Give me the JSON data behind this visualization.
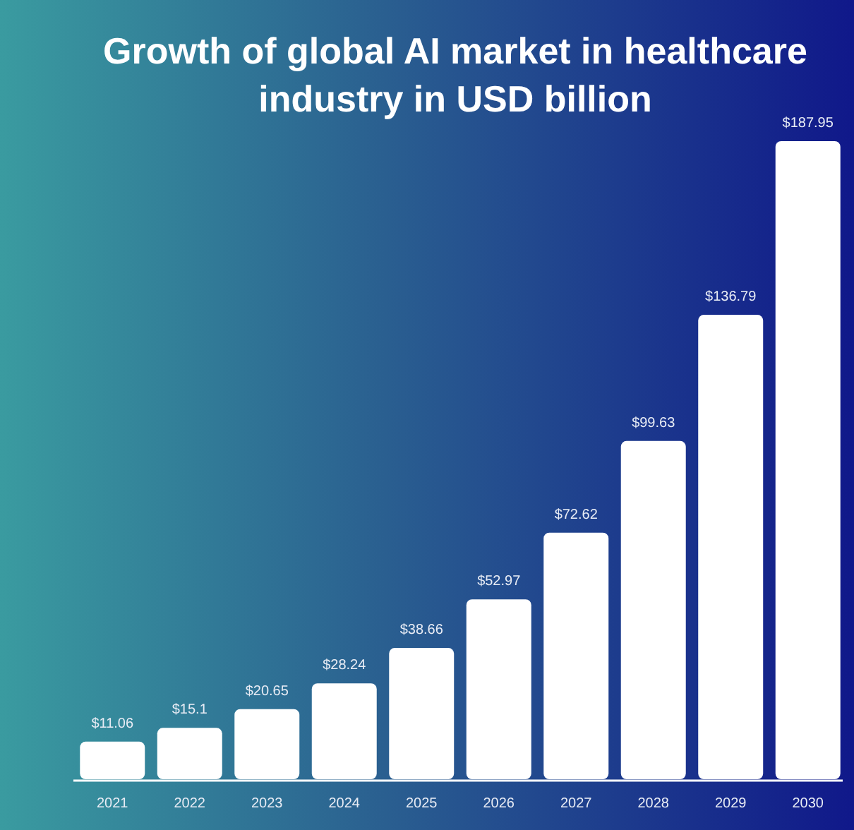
{
  "chart_data": {
    "type": "bar",
    "title": "Growth of global AI market in healthcare industry in USD billion",
    "categories": [
      "2021",
      "2022",
      "2023",
      "2024",
      "2025",
      "2026",
      "2027",
      "2028",
      "2029",
      "2030"
    ],
    "values": [
      11.06,
      15.1,
      20.65,
      28.24,
      38.66,
      52.97,
      72.62,
      99.63,
      136.79,
      187.95
    ],
    "value_labels": [
      "$11.06",
      "$15.1",
      "$20.65",
      "$28.24",
      "$38.66",
      "$52.97",
      "$72.62",
      "$99.63",
      "$136.79",
      "$187.95"
    ],
    "color": "#ffffff"
  }
}
